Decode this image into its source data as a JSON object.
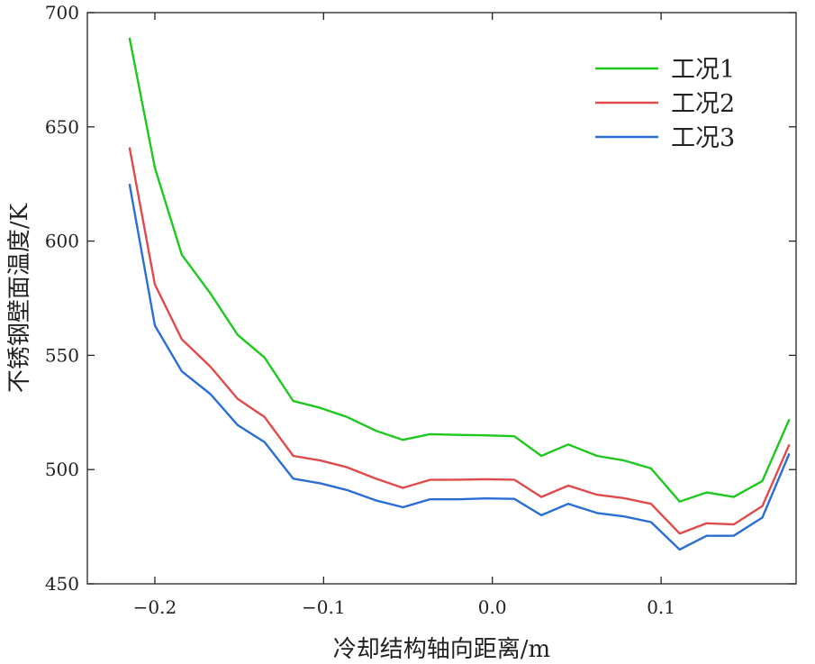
{
  "chart_data": {
    "type": "line",
    "title": "",
    "xlabel": "冷却结构轴向距离/m",
    "ylabel": "不锈钢壁面温度/K",
    "xlim": [
      -0.24,
      0.18
    ],
    "ylim": [
      450,
      700
    ],
    "xticks": [
      -0.2,
      -0.1,
      0.0,
      0.1
    ],
    "xtick_labels": [
      "−0.2",
      "−0.1",
      "0.0",
      "0.1"
    ],
    "yticks": [
      450,
      500,
      550,
      600,
      650,
      700
    ],
    "ytick_labels": [
      "450",
      "500",
      "550",
      "600",
      "650",
      "700"
    ],
    "legend_position": "top-right",
    "series": [
      {
        "name": "工况1",
        "color": "#1ec81e",
        "x": [
          -0.215,
          -0.2,
          -0.184,
          -0.167,
          -0.151,
          -0.135,
          -0.118,
          -0.102,
          -0.086,
          -0.069,
          -0.053,
          -0.037,
          -0.02,
          -0.004,
          0.013,
          0.029,
          0.045,
          0.062,
          0.078,
          0.094,
          0.111,
          0.127,
          0.143,
          0.16,
          0.176
        ],
        "values": [
          689,
          632,
          594,
          577,
          559,
          549,
          530,
          527,
          523,
          517,
          513,
          515.5,
          515.2,
          515,
          514.6,
          506,
          511,
          506,
          504,
          500.5,
          486,
          490,
          488,
          495,
          522
        ]
      },
      {
        "name": "工况2",
        "color": "#e04a4a",
        "x": [
          -0.215,
          -0.2,
          -0.184,
          -0.167,
          -0.151,
          -0.135,
          -0.118,
          -0.102,
          -0.086,
          -0.069,
          -0.053,
          -0.037,
          -0.02,
          -0.004,
          0.013,
          0.029,
          0.045,
          0.062,
          0.078,
          0.094,
          0.111,
          0.127,
          0.143,
          0.16,
          0.176
        ],
        "values": [
          641,
          581,
          557,
          545,
          531,
          523,
          506,
          504,
          501,
          496,
          492,
          495.5,
          495.6,
          495.8,
          495.6,
          488,
          493,
          489,
          487.5,
          485,
          472,
          476.5,
          476,
          484,
          511
        ]
      },
      {
        "name": "工况3",
        "color": "#2a6ed4",
        "x": [
          -0.215,
          -0.2,
          -0.184,
          -0.167,
          -0.151,
          -0.135,
          -0.118,
          -0.102,
          -0.086,
          -0.069,
          -0.053,
          -0.037,
          -0.02,
          -0.004,
          0.013,
          0.029,
          0.045,
          0.062,
          0.078,
          0.094,
          0.111,
          0.127,
          0.143,
          0.16,
          0.176
        ],
        "values": [
          625,
          563,
          543,
          533,
          519.5,
          512,
          496,
          494,
          491,
          486.5,
          483.5,
          487,
          487,
          487.4,
          487.2,
          480,
          485,
          481,
          479.5,
          477,
          465,
          471,
          471,
          479,
          507
        ]
      }
    ]
  }
}
